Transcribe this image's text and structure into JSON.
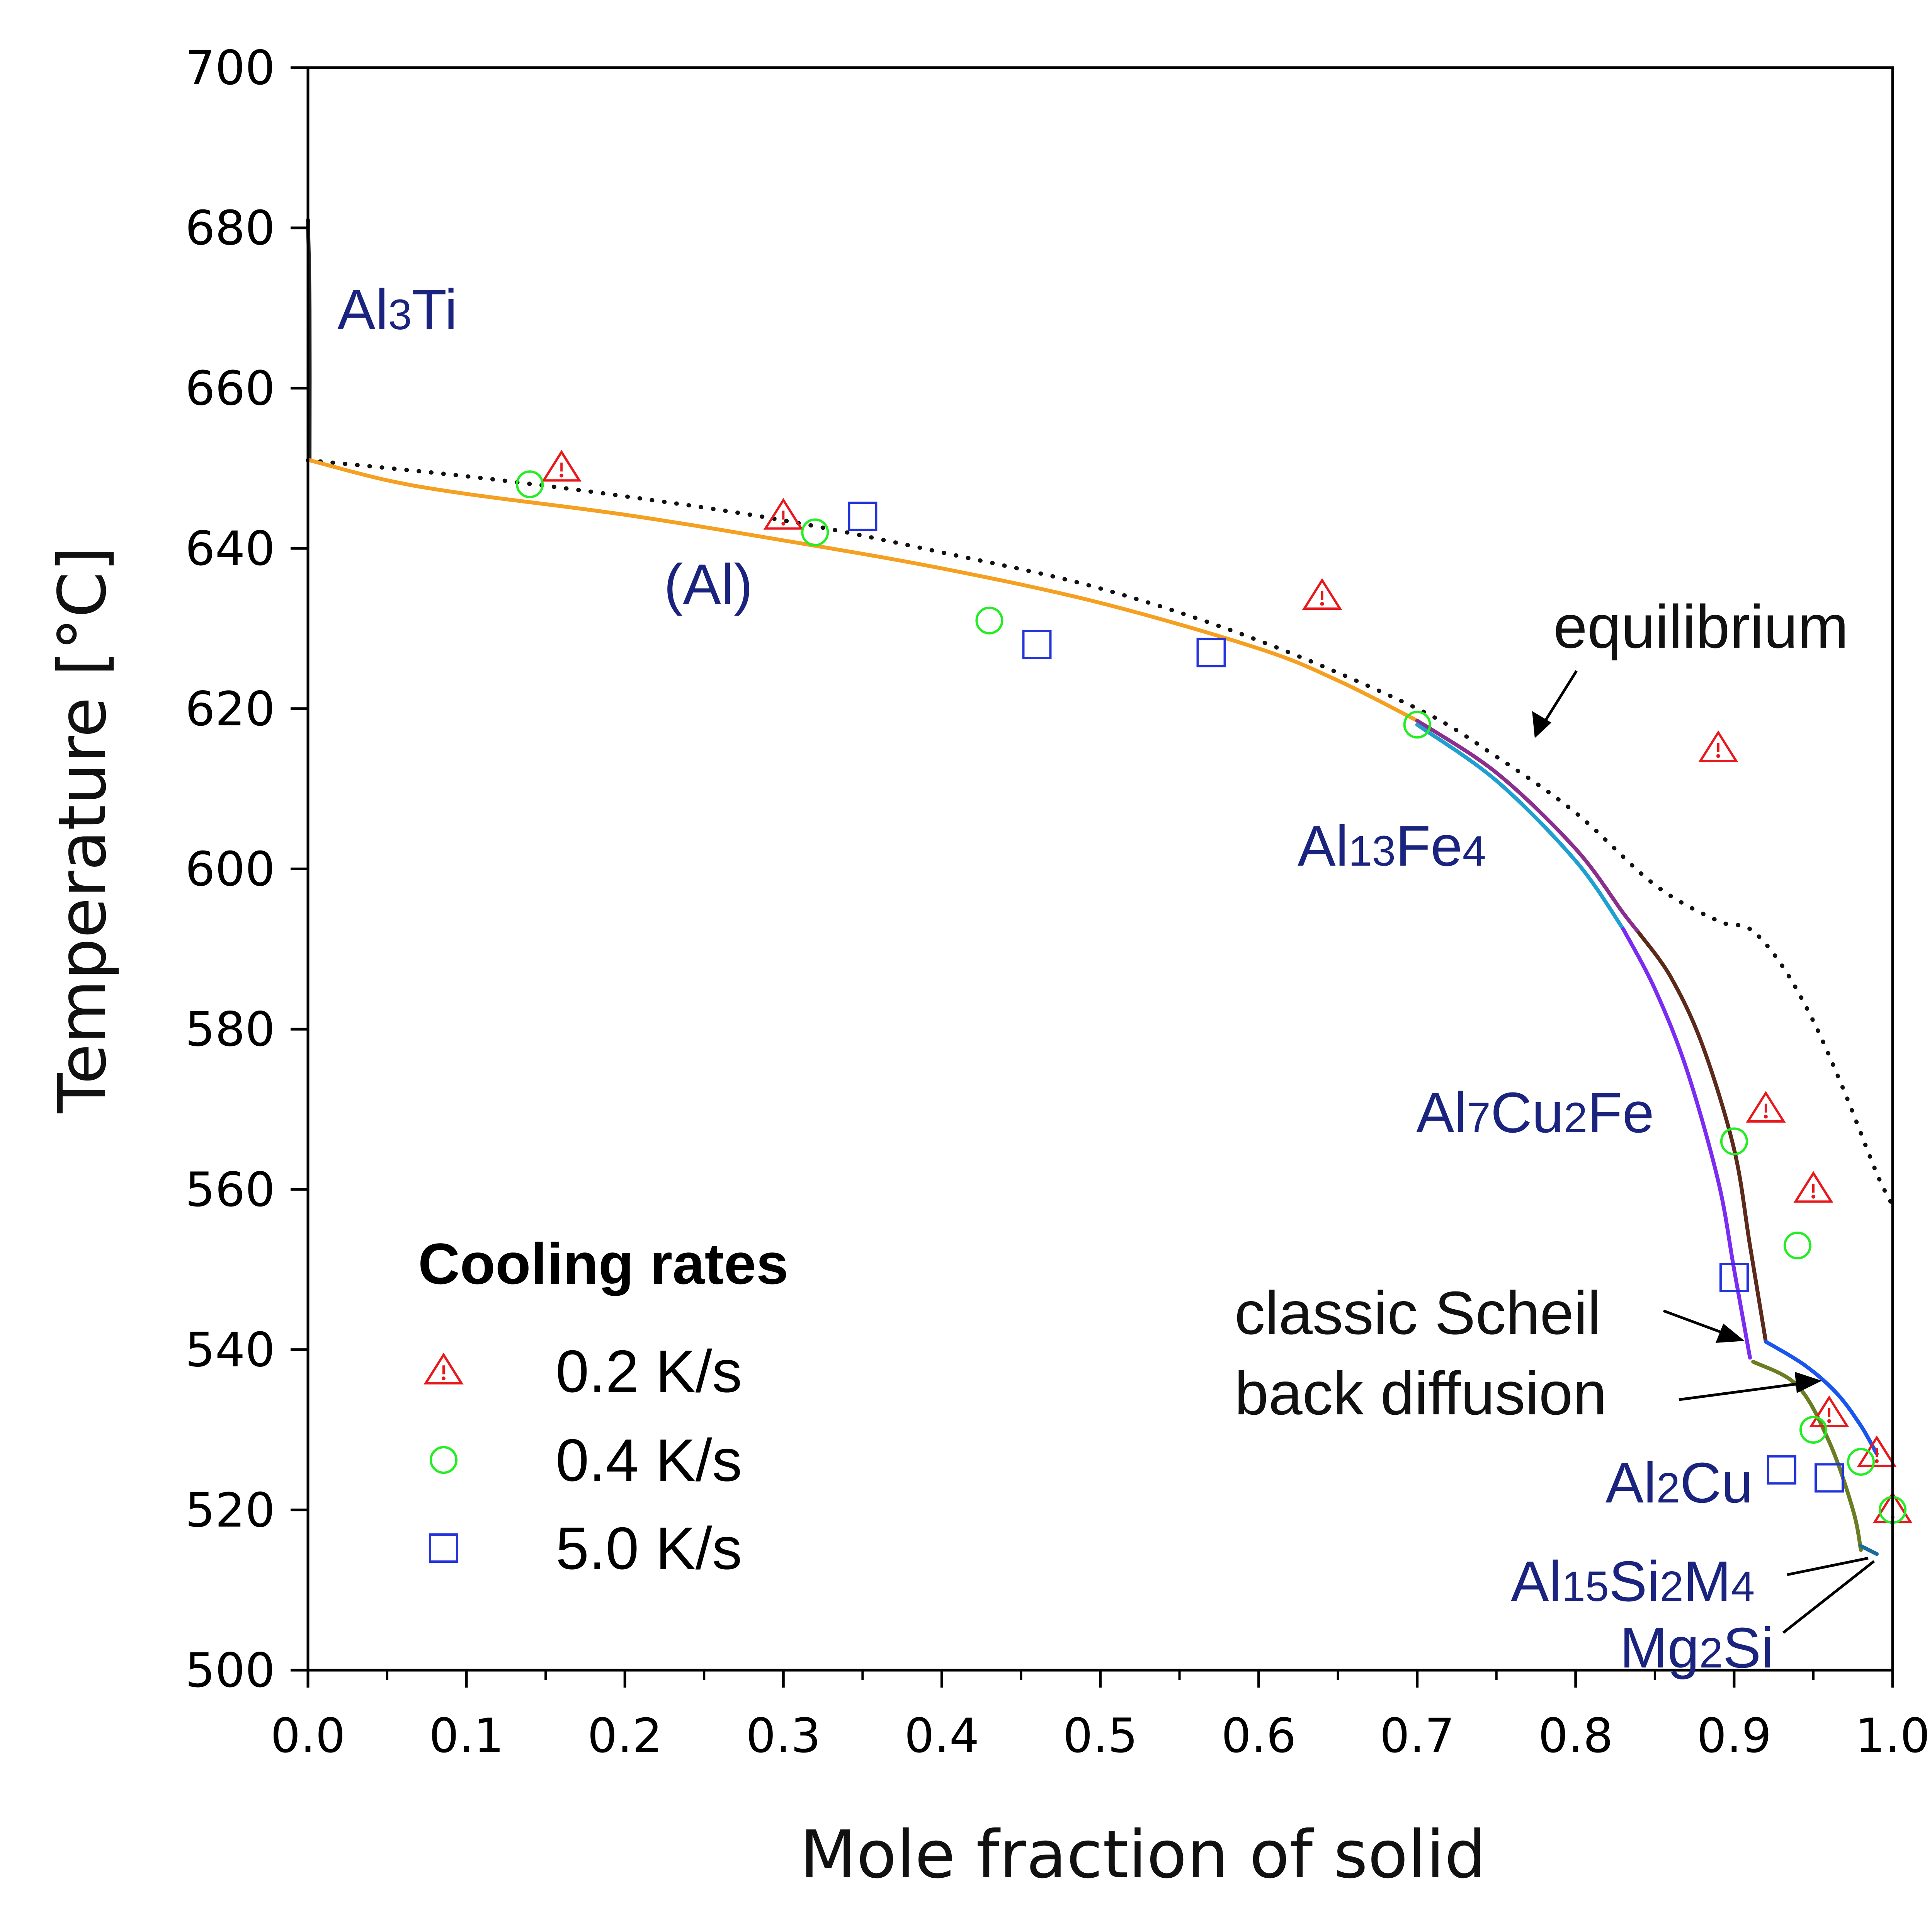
{
  "chart_data": {
    "type": "line",
    "xlabel": "Mole fraction of solid",
    "ylabel": "Temperature [°C]",
    "xlim": [
      0.0,
      1.0
    ],
    "ylim": [
      500,
      700
    ],
    "x_ticks": [
      "0.0",
      "0.1",
      "0.2",
      "0.3",
      "0.4",
      "0.5",
      "0.6",
      "0.7",
      "0.8",
      "0.9",
      "1.0"
    ],
    "y_ticks": [
      "500",
      "520",
      "540",
      "560",
      "580",
      "600",
      "620",
      "640",
      "660",
      "680",
      "700"
    ],
    "grid": false,
    "legend": {
      "title": "Cooling rates",
      "placement": "bottom-left",
      "entries": [
        {
          "label": "0.2 K/s",
          "marker": "triangle",
          "color": "#e8191c"
        },
        {
          "label": "0.4 K/s",
          "marker": "circle",
          "color": "#22ee22"
        },
        {
          "label": "5.0 K/s",
          "marker": "square",
          "color": "#2233dd"
        }
      ]
    },
    "measured": [
      {
        "name": "0.2 K/s",
        "marker": "triangle",
        "color": "#e8191c",
        "points": [
          [
            0.16,
            650
          ],
          [
            0.3,
            644
          ],
          [
            0.64,
            634
          ],
          [
            0.89,
            615
          ],
          [
            0.92,
            570
          ],
          [
            0.95,
            560
          ],
          [
            0.96,
            532
          ],
          [
            0.99,
            527
          ],
          [
            1.0,
            520
          ]
        ]
      },
      {
        "name": "0.4 K/s",
        "marker": "circle",
        "color": "#22ee22",
        "points": [
          [
            0.14,
            648
          ],
          [
            0.32,
            642
          ],
          [
            0.43,
            631
          ],
          [
            0.7,
            618
          ],
          [
            0.9,
            566
          ],
          [
            0.94,
            553
          ],
          [
            0.95,
            530
          ],
          [
            0.98,
            526
          ],
          [
            1.0,
            520
          ]
        ]
      },
      {
        "name": "5.0 K/s",
        "marker": "square",
        "color": "#2233dd",
        "points": [
          [
            0.35,
            644
          ],
          [
            0.46,
            628
          ],
          [
            0.57,
            627
          ],
          [
            0.9,
            549
          ],
          [
            0.93,
            525
          ],
          [
            0.96,
            524
          ]
        ]
      }
    ],
    "curves": [
      {
        "id": "equilibrium",
        "style": "dotted",
        "color": "#111111",
        "points": [
          [
            0.0,
            651
          ],
          [
            0.1,
            649
          ],
          [
            0.2,
            646.5
          ],
          [
            0.3,
            643.5
          ],
          [
            0.4,
            639.5
          ],
          [
            0.5,
            635
          ],
          [
            0.6,
            628.5
          ],
          [
            0.7,
            620
          ],
          [
            0.75,
            614
          ],
          [
            0.8,
            607
          ],
          [
            0.85,
            598
          ],
          [
            0.89,
            593.5
          ],
          [
            0.91,
            592.5
          ],
          [
            0.93,
            588
          ],
          [
            0.95,
            581
          ],
          [
            0.97,
            572
          ],
          [
            0.99,
            562
          ],
          [
            1.0,
            558
          ]
        ]
      },
      {
        "id": "al3ti",
        "color": "#222222",
        "points": [
          [
            0.0,
            681
          ],
          [
            0.001,
            670
          ],
          [
            0.001,
            651
          ]
        ]
      },
      {
        "id": "al-primary",
        "color": "#f5a020",
        "points": [
          [
            0.001,
            651
          ],
          [
            0.05,
            648.5
          ],
          [
            0.1,
            646.8
          ],
          [
            0.2,
            644.2
          ],
          [
            0.3,
            641
          ],
          [
            0.4,
            637.5
          ],
          [
            0.5,
            633.2
          ],
          [
            0.6,
            627.5
          ],
          [
            0.65,
            623.5
          ],
          [
            0.7,
            618.5
          ]
        ]
      },
      {
        "id": "classic-scheil-al13fe4",
        "color": "#8b2f8f",
        "points": [
          [
            0.7,
            618.5
          ],
          [
            0.75,
            612
          ],
          [
            0.8,
            602.5
          ],
          [
            0.83,
            594.5
          ],
          [
            0.84,
            592
          ]
        ]
      },
      {
        "id": "classic-scheil-al7cu2fe",
        "color": "#5b2a1a",
        "points": [
          [
            0.84,
            592
          ],
          [
            0.86,
            586.5
          ],
          [
            0.88,
            578
          ],
          [
            0.9,
            565
          ],
          [
            0.91,
            553
          ],
          [
            0.92,
            541
          ]
        ]
      },
      {
        "id": "classic-scheil-al2cu",
        "color": "#1a55ee",
        "points": [
          [
            0.92,
            541
          ],
          [
            0.945,
            538
          ],
          [
            0.965,
            534.5
          ],
          [
            0.98,
            530.5
          ],
          [
            0.99,
            527
          ]
        ]
      },
      {
        "id": "back-diffusion-al13fe4",
        "color": "#1fa0d0",
        "points": [
          [
            0.7,
            618
          ],
          [
            0.75,
            611
          ],
          [
            0.8,
            601
          ],
          [
            0.83,
            592.5
          ]
        ]
      },
      {
        "id": "back-diffusion-al7cu2fe",
        "color": "#7b2cf2",
        "points": [
          [
            0.83,
            592.5
          ],
          [
            0.85,
            585
          ],
          [
            0.87,
            575
          ],
          [
            0.89,
            561
          ],
          [
            0.9,
            550
          ],
          [
            0.91,
            539
          ]
        ]
      },
      {
        "id": "back-diffusion-al2cu",
        "color": "#6b7d22",
        "points": [
          [
            0.912,
            538.5
          ],
          [
            0.94,
            535.5
          ],
          [
            0.96,
            528.5
          ],
          [
            0.975,
            520
          ],
          [
            0.98,
            515
          ]
        ]
      },
      {
        "id": "al15si2m4-mg2si",
        "color": "#1a6a9a",
        "points": [
          [
            0.98,
            515.5
          ],
          [
            0.99,
            514.5
          ]
        ]
      }
    ],
    "annotations": [
      {
        "id": "ann-al3ti",
        "text": "Al3Ti",
        "parts": [
          [
            "Al",
            "big"
          ],
          [
            "3",
            "small"
          ],
          [
            "Ti",
            "big"
          ]
        ]
      },
      {
        "id": "ann-al",
        "text": "(Al)",
        "parts": [
          [
            "(Al)",
            "big"
          ]
        ]
      },
      {
        "id": "ann-al13fe4",
        "text": "Al13Fe4",
        "parts": [
          [
            "Al",
            "big"
          ],
          [
            "13",
            "small"
          ],
          [
            "Fe",
            "big"
          ],
          [
            "4",
            "small"
          ]
        ]
      },
      {
        "id": "ann-al7cu2fe",
        "text": "Al7Cu2Fe",
        "parts": [
          [
            "Al",
            "big"
          ],
          [
            "7",
            "small"
          ],
          [
            "Cu",
            "big"
          ],
          [
            "2",
            "small"
          ],
          [
            "Fe",
            "big"
          ]
        ]
      },
      {
        "id": "ann-al2cu",
        "text": "Al2Cu",
        "parts": [
          [
            "Al",
            "big"
          ],
          [
            "2",
            "small"
          ],
          [
            "Cu",
            "big"
          ]
        ]
      },
      {
        "id": "ann-al15si2m4",
        "text": "Al15Si2M4",
        "parts": [
          [
            "Al",
            "big"
          ],
          [
            "15",
            "small"
          ],
          [
            "Si",
            "big"
          ],
          [
            "2",
            "small"
          ],
          [
            "M",
            "big"
          ],
          [
            "4",
            "small"
          ]
        ]
      },
      {
        "id": "ann-mg2si",
        "text": "Mg2Si",
        "parts": [
          [
            "Mg",
            "big"
          ],
          [
            "2",
            "small"
          ],
          [
            "Si",
            "big"
          ]
        ]
      },
      {
        "id": "ann-equilibrium",
        "text": "equilibrium"
      },
      {
        "id": "ann-classic-scheil",
        "text": "classic Scheil"
      },
      {
        "id": "ann-back-diffusion",
        "text": "back diffusion"
      }
    ],
    "colors": {
      "phase_label": "#1a237e",
      "axis": "#000000",
      "logo": "#b0174a"
    }
  }
}
